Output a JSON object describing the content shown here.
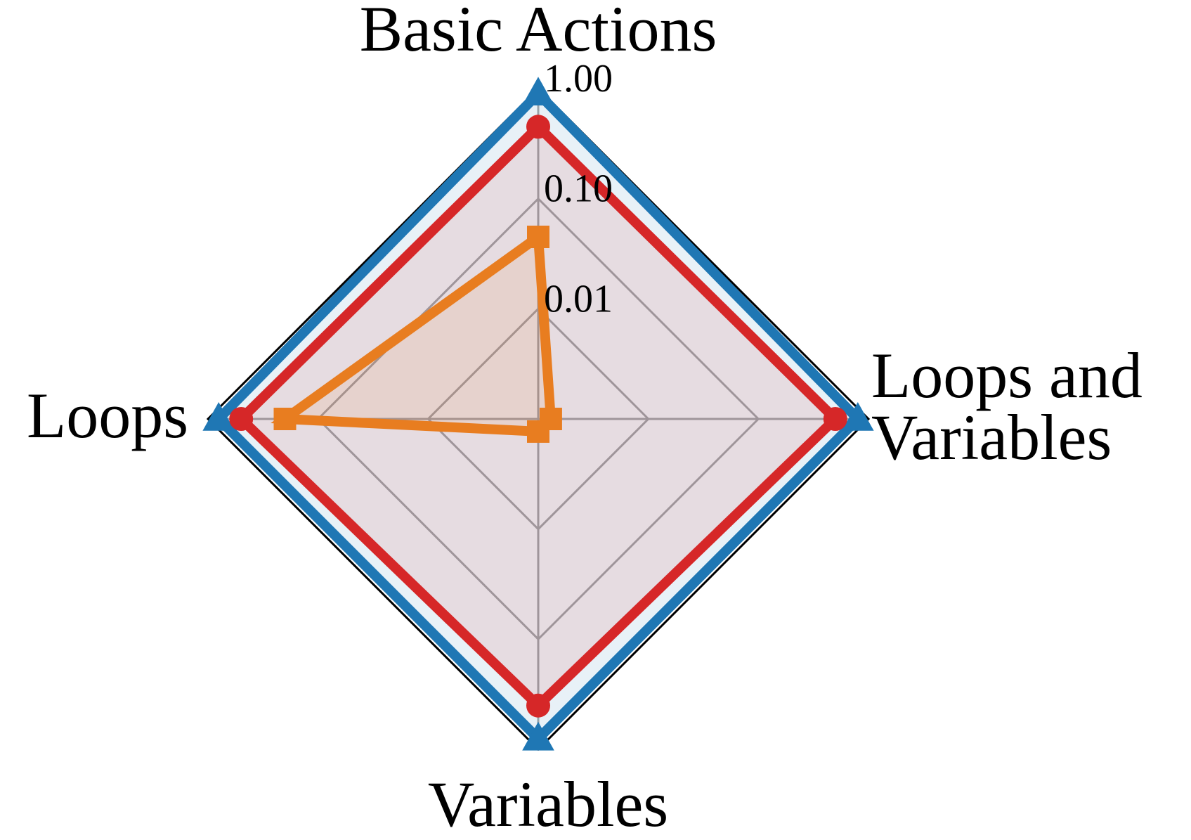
{
  "chart_data": {
    "type": "radar",
    "scale": "log",
    "rlim": [
      0.001,
      1.0
    ],
    "grid": true,
    "title": "",
    "axes": [
      {
        "label_lines": [
          "Basic Actions"
        ]
      },
      {
        "label_lines": [
          "Loops and",
          "Variables"
        ]
      },
      {
        "label_lines": [
          "Variables"
        ]
      },
      {
        "label_lines": [
          "Loops"
        ]
      }
    ],
    "tick_labels": [
      "1.00",
      "0.10",
      "0.01"
    ],
    "tick_values": [
      1.0,
      0.1,
      0.01
    ],
    "series": [
      {
        "values": [
          0.9,
          0.8,
          0.8,
          0.8
        ],
        "color": "#1f77b4",
        "marker": "triangle",
        "fill_opacity": 0.1
      },
      {
        "values": [
          0.45,
          0.5,
          0.4,
          0.5
        ],
        "color": "#d62728",
        "marker": "circle",
        "fill_opacity": 0.1
      },
      {
        "values": [
          0.045,
          0.0013,
          0.0013,
          0.2
        ],
        "color": "#e87d20",
        "marker": "square",
        "fill_opacity": 0.1
      }
    ]
  }
}
